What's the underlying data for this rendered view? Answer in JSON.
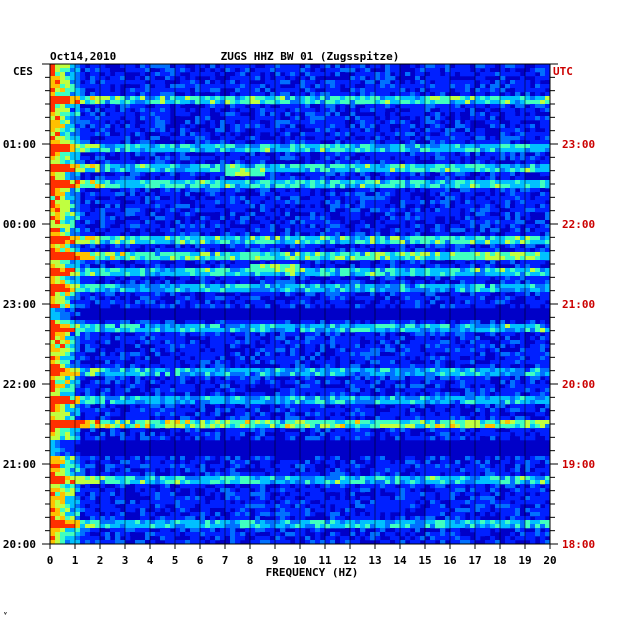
{
  "chart_data": {
    "type": "heatmap",
    "title": "ZUGS HHZ BW 01 (Zugsspitze)",
    "date": "Oct14,2010",
    "left_axis_label": "CES",
    "right_axis_label": "UTC",
    "xlabel": "FREQUENCY (HZ)",
    "xlim": [
      0,
      20
    ],
    "x_ticks": [
      "0",
      "1",
      "2",
      "3",
      "4",
      "5",
      "6",
      "7",
      "8",
      "9",
      "10",
      "11",
      "12",
      "13",
      "14",
      "15",
      "16",
      "17",
      "18",
      "19",
      "20"
    ],
    "y_ticks_left": [
      "01:00",
      "00:00",
      "23:00",
      "22:00",
      "21:00",
      "20:00"
    ],
    "y_ticks_right": [
      "23:00",
      "22:00",
      "21:00",
      "20:00",
      "19:00",
      "18:00"
    ],
    "hours_span": 6,
    "colorscale": [
      "#00007a",
      "#0000c8",
      "#0020ff",
      "#0070ff",
      "#00c0ff",
      "#40ffc0",
      "#c0ff40",
      "#ffc000",
      "#ff3000"
    ],
    "bright_lines": [
      {
        "time": "01:32",
        "level": 0.75
      },
      {
        "time": "00:58",
        "level": 0.65
      },
      {
        "time": "00:41",
        "level": 0.7
      },
      {
        "time": "00:29",
        "level": 0.7
      },
      {
        "time": "23:47",
        "level": 0.75
      },
      {
        "time": "23:35",
        "level": 0.85
      },
      {
        "time": "23:23",
        "level": 0.65
      },
      {
        "time": "23:12",
        "level": 0.55
      },
      {
        "time": "22:42",
        "level": 0.6
      },
      {
        "time": "22:08",
        "level": 0.55
      },
      {
        "time": "21:48",
        "level": 0.55
      },
      {
        "time": "21:30",
        "level": 0.95
      },
      {
        "time": "20:48",
        "level": 0.7
      },
      {
        "time": "20:14",
        "level": 0.6
      }
    ],
    "quiet_bands": [
      {
        "from": "22:58",
        "to": "22:49"
      },
      {
        "from": "21:18",
        "to": "21:06"
      }
    ],
    "features": [
      {
        "time": "00:38",
        "from_hz": 7,
        "to_hz": 8.5,
        "level": 0.6
      },
      {
        "time": "23:28",
        "from_hz": 8,
        "to_hz": 10,
        "level": 0.6
      },
      {
        "time": "23:35",
        "from_hz": 16,
        "to_hz": 19.5,
        "level": 0.6
      },
      {
        "time": "23:11",
        "from_hz": 7,
        "to_hz": 8,
        "level": 0.5
      }
    ]
  },
  "footer_mark": "ᵛ"
}
